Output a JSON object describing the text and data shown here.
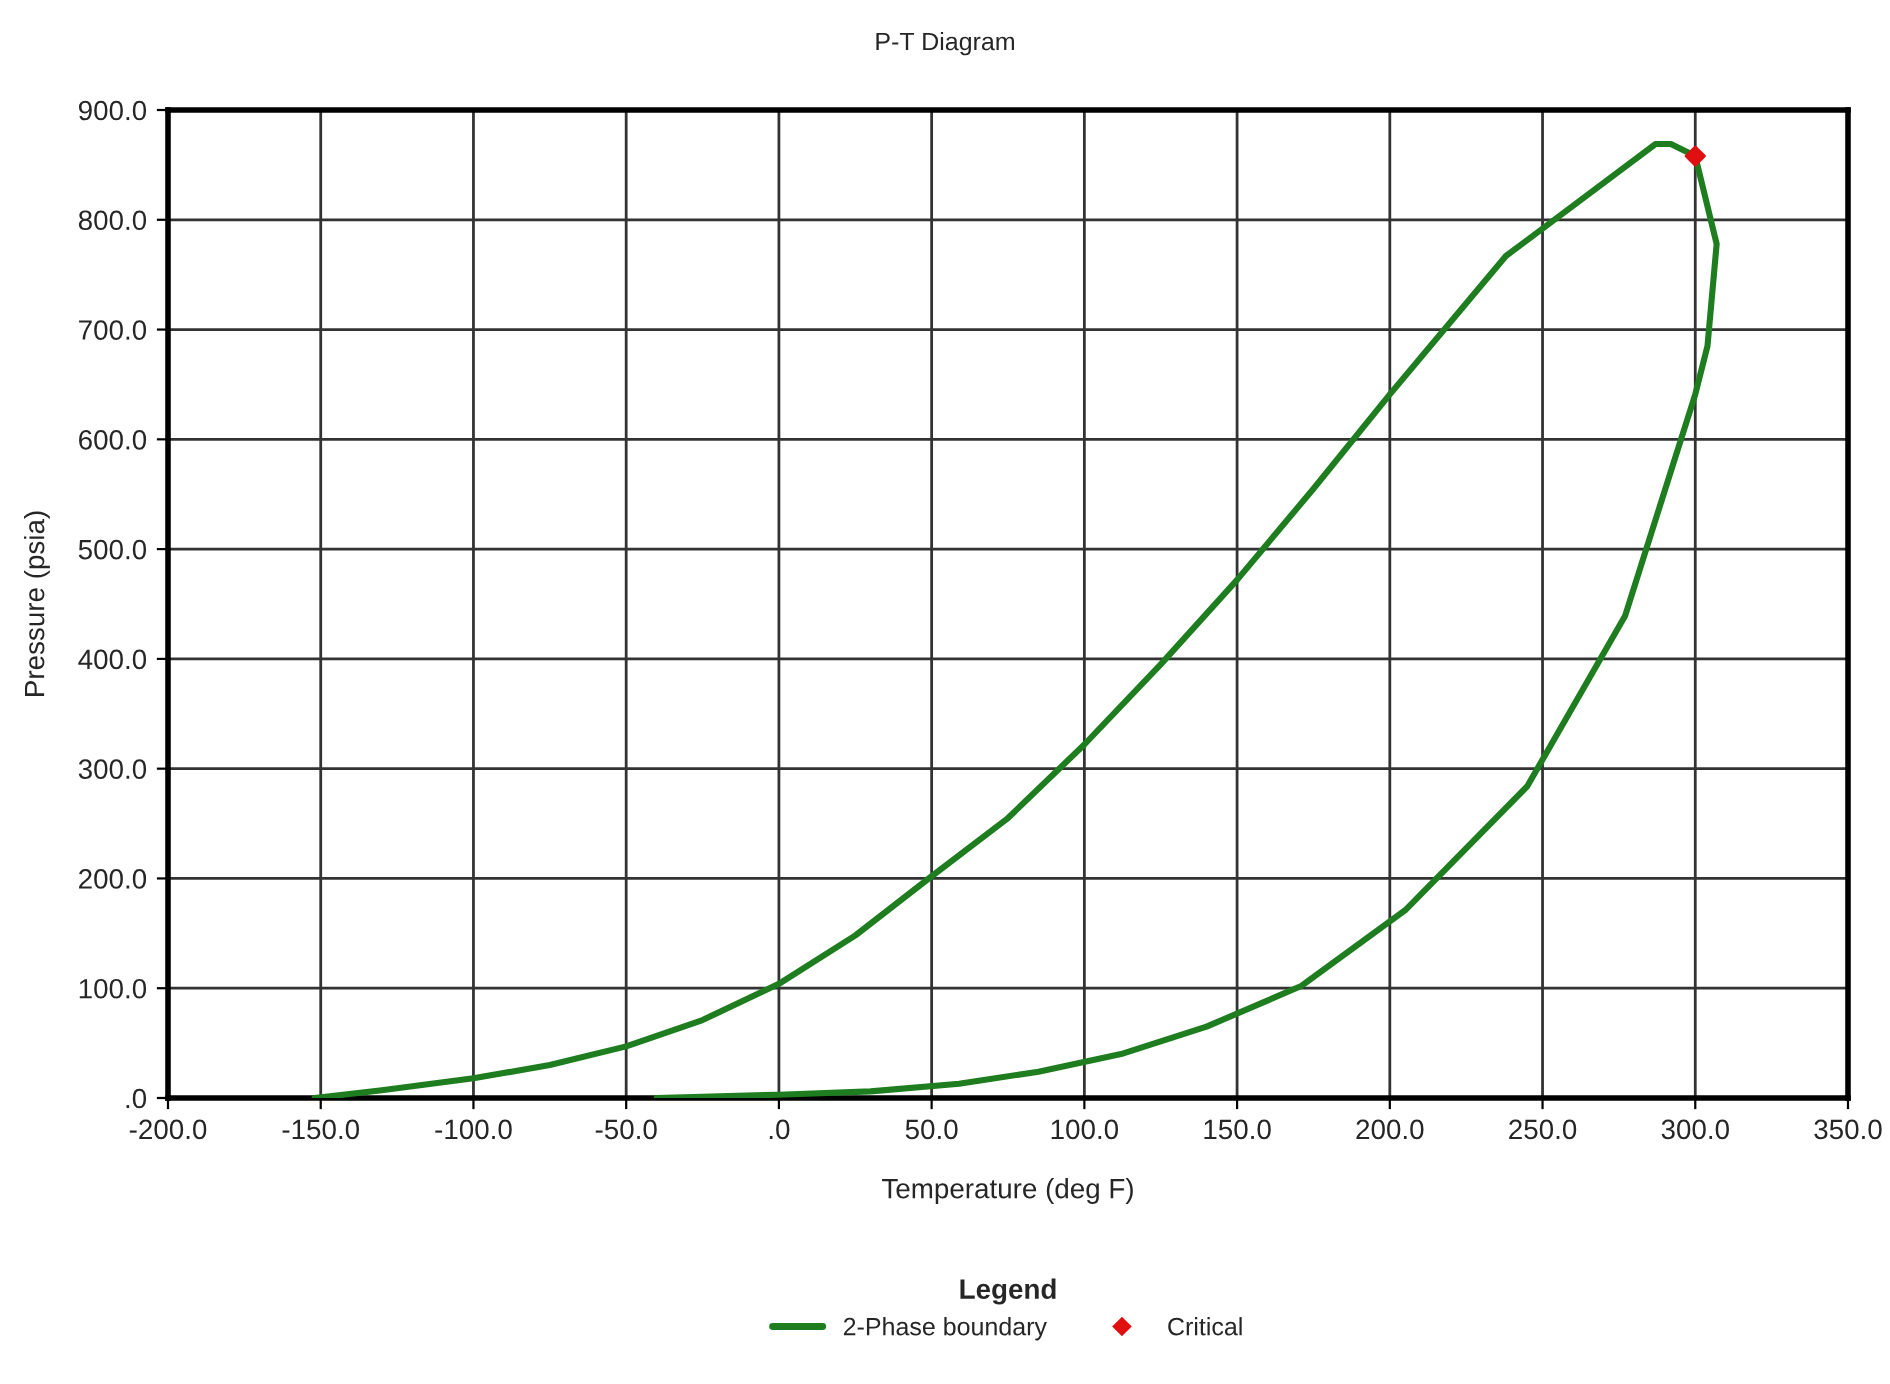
{
  "chart_data": {
    "type": "line",
    "title": "P-T Diagram",
    "xlabel": "Temperature (deg F)",
    "ylabel": "Pressure (psia)",
    "legend_title": "Legend",
    "series": [
      {
        "name": "2-Phase boundary",
        "color": "#1e7d1e",
        "marker": "none",
        "x": [
          -152,
          -130,
          -100,
          -75,
          -50,
          -25,
          0,
          25,
          50,
          75,
          100,
          125,
          150,
          175,
          200,
          238,
          287,
          292,
          300,
          307,
          304,
          300,
          277,
          245,
          205,
          171,
          140,
          112,
          85,
          59,
          30,
          0,
          -40
        ],
        "values": [
          0,
          7,
          18,
          30,
          47,
          71,
          104,
          148,
          202,
          255,
          322,
          395,
          472,
          555,
          641,
          767,
          869,
          869,
          858,
          778,
          685,
          641,
          439,
          284,
          171,
          102,
          65,
          40,
          24,
          13,
          6,
          3,
          0
        ]
      },
      {
        "name": "Critical",
        "color": "#e01010",
        "type": "scatter",
        "marker": "diamond",
        "x": [
          300
        ],
        "values": [
          858
        ]
      }
    ],
    "xlim": [
      -200,
      350
    ],
    "ylim": [
      0,
      900
    ],
    "xticks": [
      {
        "value": -200,
        "label": "-200.0"
      },
      {
        "value": -150,
        "label": "-150.0"
      },
      {
        "value": -100,
        "label": "-100.0"
      },
      {
        "value": -50,
        "label": "-50.0"
      },
      {
        "value": 0,
        "label": ".0"
      },
      {
        "value": 50,
        "label": "50.0"
      },
      {
        "value": 100,
        "label": "100.0"
      },
      {
        "value": 150,
        "label": "150.0"
      },
      {
        "value": 200,
        "label": "200.0"
      },
      {
        "value": 250,
        "label": "250.0"
      },
      {
        "value": 300,
        "label": "300.0"
      },
      {
        "value": 350,
        "label": "350.0"
      }
    ],
    "yticks": [
      {
        "value": 0,
        "label": ".0"
      },
      {
        "value": 100,
        "label": "100.0"
      },
      {
        "value": 200,
        "label": "200.0"
      },
      {
        "value": 300,
        "label": "300.0"
      },
      {
        "value": 400,
        "label": "400.0"
      },
      {
        "value": 500,
        "label": "500.0"
      },
      {
        "value": 600,
        "label": "600.0"
      },
      {
        "value": 700,
        "label": "700.0"
      },
      {
        "value": 800,
        "label": "800.0"
      },
      {
        "value": 900,
        "label": "900.0"
      }
    ],
    "grid": true,
    "legend": "bottom"
  }
}
